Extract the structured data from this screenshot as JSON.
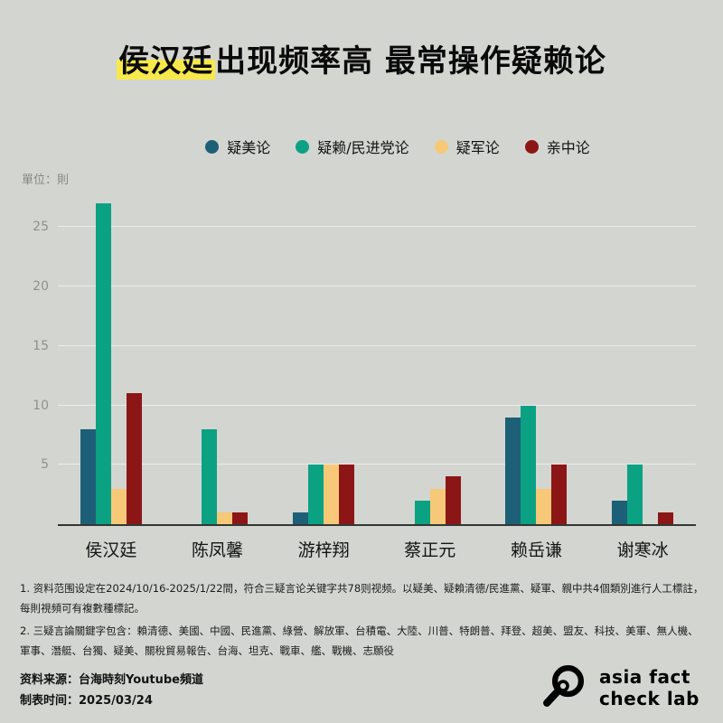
{
  "title": {
    "highlight": "侯汉廷",
    "rest": "出现频率高 最常操作疑赖论"
  },
  "unit_label": "單位：則",
  "chart_data": {
    "type": "bar",
    "categories": [
      "侯汉廷",
      "陈凤馨",
      "游梓翔",
      "蔡正元",
      "赖岳谦",
      "谢寒冰"
    ],
    "series": [
      {
        "name": "疑美论",
        "color": "#1d5f76",
        "values": [
          8,
          0,
          1,
          0,
          9,
          2
        ]
      },
      {
        "name": "疑赖/民进党论",
        "color": "#0ba183",
        "values": [
          27,
          8,
          5,
          2,
          10,
          5
        ]
      },
      {
        "name": "疑军论",
        "color": "#f7c877",
        "values": [
          3,
          1,
          5,
          3,
          3,
          0
        ]
      },
      {
        "name": "亲中论",
        "color": "#8c1616",
        "values": [
          11,
          1,
          5,
          4,
          5,
          1
        ]
      }
    ],
    "title": "侯汉廷出现频率高 最常操作疑赖论",
    "xlabel": "",
    "ylabel": "單位：則",
    "yticks": [
      5,
      10,
      15,
      20,
      25
    ],
    "ylim": [
      0,
      28
    ],
    "grid": true,
    "legend_position": "top"
  },
  "footnotes": [
    "1. 资料范围设定在2024/10/16-2025/1/22間，符合三疑言论关键字共78则视频。以疑美、疑賴清德/民進黨、疑軍、親中共4個類別進行人工標註，每則視頻可有複數種標記。",
    "2. 三疑言論關鍵字包含：賴清德、美國、中國、民進黨、綠營、解放軍、台積電、大陸、川普、特朗普、拜登、超美、盟友、科技、美軍、無人機、軍事、潛艇、台獨、疑美、關稅貿易報告、台海、坦克、戰車、艦、戰機、志願役"
  ],
  "source": {
    "line1": "资料来源：台海時刻Youtube頻道",
    "line2": "制表时间：2025/03/24"
  },
  "logo": {
    "line1": "asia fact",
    "line2": "check lab"
  }
}
